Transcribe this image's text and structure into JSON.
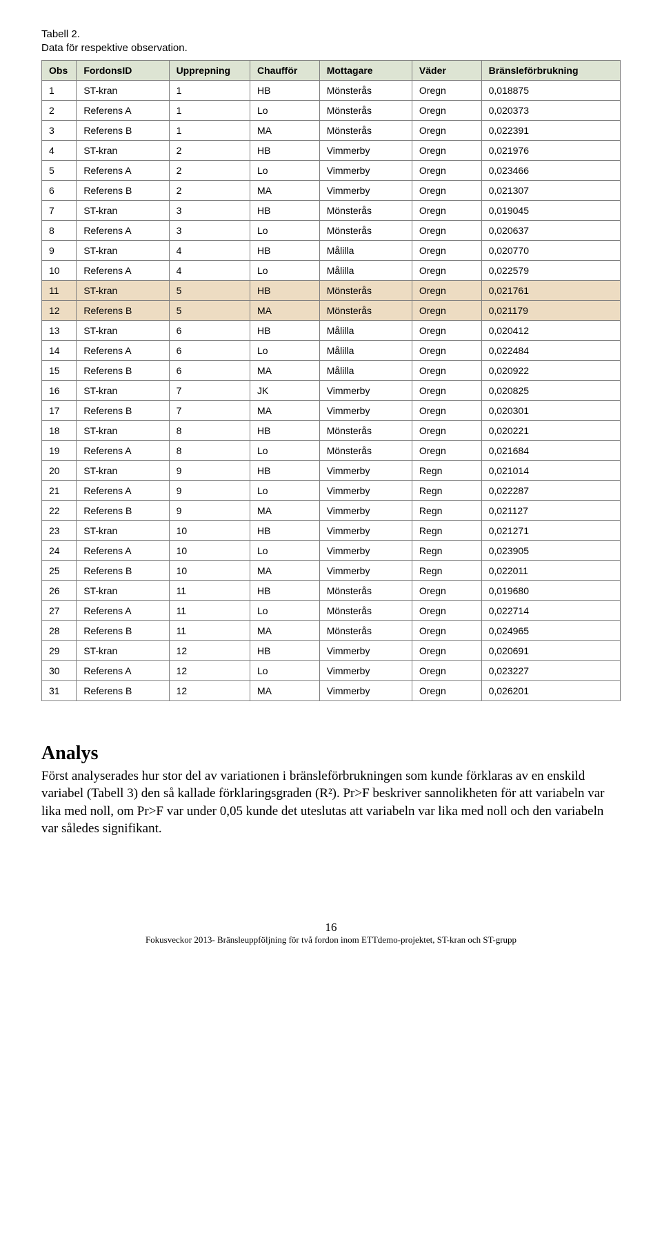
{
  "caption": {
    "line1": "Tabell 2.",
    "line2": "Data för respektive observation."
  },
  "table": {
    "headers": [
      "Obs",
      "FordonsID",
      "Upprepning",
      "Chaufför",
      "Mottagare",
      "Väder",
      "Bränsleförbrukning"
    ],
    "highlight_bg": "#eddcc2",
    "header_bg": "#dde4d3",
    "border_color": "#808080",
    "rows": [
      {
        "obs": "1",
        "fordons": "ST-kran",
        "upp": "1",
        "chauf": "HB",
        "mott": "Mönsterås",
        "vader": "Oregn",
        "forb": "0,018875",
        "hl": false
      },
      {
        "obs": "2",
        "fordons": "Referens A",
        "upp": "1",
        "chauf": "Lo",
        "mott": "Mönsterås",
        "vader": "Oregn",
        "forb": "0,020373",
        "hl": false
      },
      {
        "obs": "3",
        "fordons": "Referens B",
        "upp": "1",
        "chauf": "MA",
        "mott": "Mönsterås",
        "vader": "Oregn",
        "forb": "0,022391",
        "hl": false
      },
      {
        "obs": "4",
        "fordons": "ST-kran",
        "upp": "2",
        "chauf": "HB",
        "mott": "Vimmerby",
        "vader": "Oregn",
        "forb": "0,021976",
        "hl": false
      },
      {
        "obs": "5",
        "fordons": "Referens A",
        "upp": "2",
        "chauf": "Lo",
        "mott": "Vimmerby",
        "vader": "Oregn",
        "forb": "0,023466",
        "hl": false
      },
      {
        "obs": "6",
        "fordons": "Referens B",
        "upp": "2",
        "chauf": "MA",
        "mott": "Vimmerby",
        "vader": "Oregn",
        "forb": "0,021307",
        "hl": false
      },
      {
        "obs": "7",
        "fordons": "ST-kran",
        "upp": "3",
        "chauf": "HB",
        "mott": "Mönsterås",
        "vader": "Oregn",
        "forb": "0,019045",
        "hl": false
      },
      {
        "obs": "8",
        "fordons": "Referens A",
        "upp": "3",
        "chauf": "Lo",
        "mott": "Mönsterås",
        "vader": "Oregn",
        "forb": "0,020637",
        "hl": false
      },
      {
        "obs": "9",
        "fordons": "ST-kran",
        "upp": "4",
        "chauf": "HB",
        "mott": "Målilla",
        "vader": "Oregn",
        "forb": "0,020770",
        "hl": false
      },
      {
        "obs": "10",
        "fordons": "Referens A",
        "upp": "4",
        "chauf": "Lo",
        "mott": "Målilla",
        "vader": "Oregn",
        "forb": "0,022579",
        "hl": false
      },
      {
        "obs": "11",
        "fordons": "ST-kran",
        "upp": "5",
        "chauf": "HB",
        "mott": "Mönsterås",
        "vader": "Oregn",
        "forb": "0,021761",
        "hl": true
      },
      {
        "obs": "12",
        "fordons": "Referens B",
        "upp": "5",
        "chauf": "MA",
        "mott": "Mönsterås",
        "vader": "Oregn",
        "forb": "0,021179",
        "hl": true
      },
      {
        "obs": "13",
        "fordons": "ST-kran",
        "upp": "6",
        "chauf": "HB",
        "mott": "Målilla",
        "vader": "Oregn",
        "forb": "0,020412",
        "hl": false
      },
      {
        "obs": "14",
        "fordons": "Referens A",
        "upp": "6",
        "chauf": "Lo",
        "mott": "Målilla",
        "vader": "Oregn",
        "forb": "0,022484",
        "hl": false
      },
      {
        "obs": "15",
        "fordons": "Referens B",
        "upp": "6",
        "chauf": "MA",
        "mott": "Målilla",
        "vader": "Oregn",
        "forb": "0,020922",
        "hl": false
      },
      {
        "obs": "16",
        "fordons": "ST-kran",
        "upp": "7",
        "chauf": "JK",
        "mott": "Vimmerby",
        "vader": "Oregn",
        "forb": "0,020825",
        "hl": false
      },
      {
        "obs": "17",
        "fordons": "Referens B",
        "upp": "7",
        "chauf": "MA",
        "mott": "Vimmerby",
        "vader": "Oregn",
        "forb": "0,020301",
        "hl": false
      },
      {
        "obs": "18",
        "fordons": "ST-kran",
        "upp": "8",
        "chauf": "HB",
        "mott": "Mönsterås",
        "vader": "Oregn",
        "forb": "0,020221",
        "hl": false
      },
      {
        "obs": "19",
        "fordons": "Referens A",
        "upp": "8",
        "chauf": "Lo",
        "mott": "Mönsterås",
        "vader": "Oregn",
        "forb": "0,021684",
        "hl": false
      },
      {
        "obs": "20",
        "fordons": "ST-kran",
        "upp": "9",
        "chauf": "HB",
        "mott": "Vimmerby",
        "vader": "Regn",
        "forb": "0,021014",
        "hl": false
      },
      {
        "obs": "21",
        "fordons": "Referens A",
        "upp": "9",
        "chauf": "Lo",
        "mott": "Vimmerby",
        "vader": "Regn",
        "forb": "0,022287",
        "hl": false
      },
      {
        "obs": "22",
        "fordons": "Referens B",
        "upp": "9",
        "chauf": "MA",
        "mott": "Vimmerby",
        "vader": "Regn",
        "forb": "0,021127",
        "hl": false
      },
      {
        "obs": "23",
        "fordons": "ST-kran",
        "upp": "10",
        "chauf": "HB",
        "mott": "Vimmerby",
        "vader": "Regn",
        "forb": "0,021271",
        "hl": false
      },
      {
        "obs": "24",
        "fordons": "Referens A",
        "upp": "10",
        "chauf": "Lo",
        "mott": "Vimmerby",
        "vader": "Regn",
        "forb": "0,023905",
        "hl": false
      },
      {
        "obs": "25",
        "fordons": "Referens B",
        "upp": "10",
        "chauf": "MA",
        "mott": "Vimmerby",
        "vader": "Regn",
        "forb": "0,022011",
        "hl": false
      },
      {
        "obs": "26",
        "fordons": "ST-kran",
        "upp": "11",
        "chauf": "HB",
        "mott": "Mönsterås",
        "vader": "Oregn",
        "forb": "0,019680",
        "hl": false
      },
      {
        "obs": "27",
        "fordons": "Referens A",
        "upp": "11",
        "chauf": "Lo",
        "mott": "Mönsterås",
        "vader": "Oregn",
        "forb": "0,022714",
        "hl": false
      },
      {
        "obs": "28",
        "fordons": "Referens B",
        "upp": "11",
        "chauf": "MA",
        "mott": "Mönsterås",
        "vader": "Oregn",
        "forb": "0,024965",
        "hl": false
      },
      {
        "obs": "29",
        "fordons": "ST-kran",
        "upp": "12",
        "chauf": "HB",
        "mott": "Vimmerby",
        "vader": "Oregn",
        "forb": "0,020691",
        "hl": false
      },
      {
        "obs": "30",
        "fordons": "Referens A",
        "upp": "12",
        "chauf": "Lo",
        "mott": "Vimmerby",
        "vader": "Oregn",
        "forb": "0,023227",
        "hl": false
      },
      {
        "obs": "31",
        "fordons": "Referens B",
        "upp": "12",
        "chauf": "MA",
        "mott": "Vimmerby",
        "vader": "Oregn",
        "forb": "0,026201",
        "hl": false
      }
    ]
  },
  "analys": {
    "heading": "Analys",
    "body": "Först analyserades hur stor del av variationen i bränsleförbrukningen som kunde förklaras av en enskild variabel (Tabell 3) den så kallade förklaringsgraden (R²). Pr>F beskriver sannolikheten för att variabeln var lika med noll, om Pr>F var under 0,05 kunde det uteslutas att variabeln var lika med noll och den variabeln var således signifikant."
  },
  "footer": {
    "page": "16",
    "line": "Fokusveckor 2013- Bränsleuppföljning för två fordon inom ETTdemo-projektet, ST-kran och ST-grupp"
  }
}
